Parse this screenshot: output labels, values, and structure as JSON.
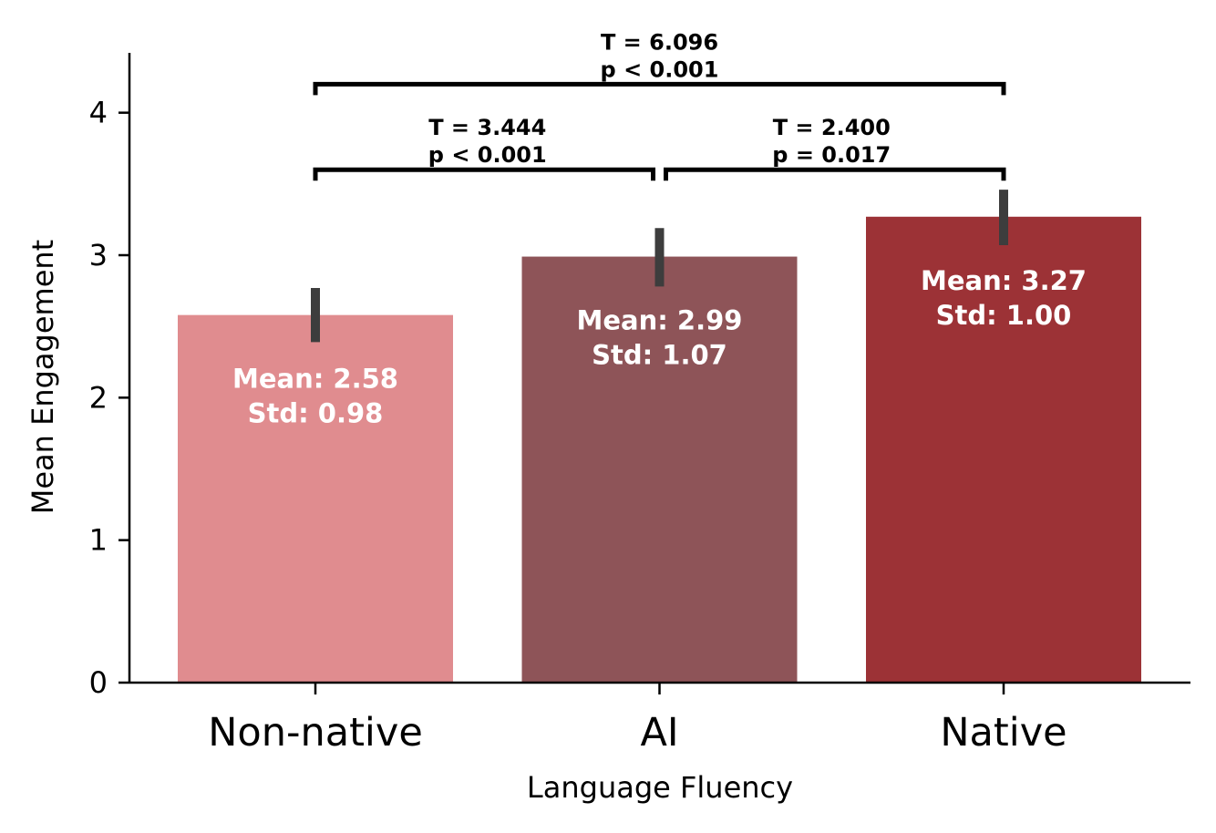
{
  "chart_data": {
    "type": "bar",
    "title": "",
    "xlabel": "Language Fluency",
    "ylabel": "Mean Engagement",
    "ylim": [
      0,
      4.42
    ],
    "yticks": [
      0,
      1,
      2,
      3,
      4
    ],
    "grid": false,
    "categories": [
      "Non-native",
      "AI",
      "Native"
    ],
    "values": [
      2.58,
      2.99,
      3.27
    ],
    "error_low": [
      2.39,
      2.78,
      3.07
    ],
    "error_high": [
      2.77,
      3.19,
      3.46
    ],
    "colors": [
      "#e08c8f",
      "#8e5458",
      "#9c3236"
    ],
    "bar_labels": [
      {
        "mean": "Mean: 2.58",
        "std": "Std: 0.98"
      },
      {
        "mean": "Mean: 2.99",
        "std": "Std: 1.07"
      },
      {
        "mean": "Mean: 3.27",
        "std": "Std: 1.00"
      }
    ],
    "comparisons": [
      {
        "from": 0,
        "to": 1,
        "y": 3.6,
        "t_text": "T = 3.444",
        "p_text": "p < 0.001"
      },
      {
        "from": 1,
        "to": 2,
        "y": 3.6,
        "t_text": "T = 2.400",
        "p_text": "p = 0.017"
      },
      {
        "from": 0,
        "to": 2,
        "y": 4.2,
        "t_text": "T = 6.096",
        "p_text": "p < 0.001"
      }
    ]
  }
}
